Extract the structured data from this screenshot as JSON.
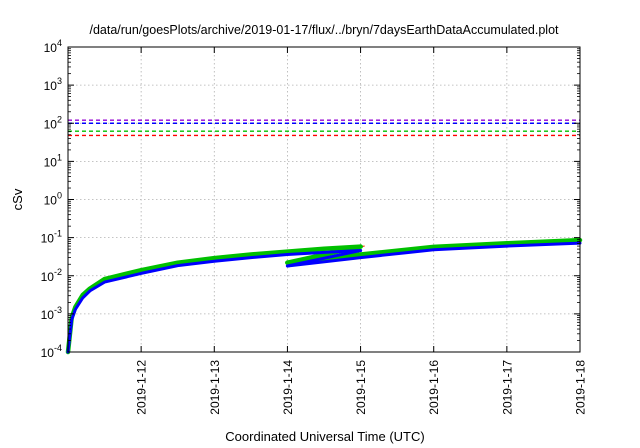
{
  "chart_data": {
    "type": "line",
    "title": "/data/run/goesPlots/archive/2019-01-17/flux/../bryn/7daysEarthDataAccumulated.plot",
    "xlabel": "Coordinated Universal Time (UTC)",
    "ylabel": "cSv",
    "yscale": "log",
    "ylim": [
      0.0001,
      10000
    ],
    "xlim": [
      "2019-01-11 00:00",
      "2019-01-18 00:00"
    ],
    "grid": true,
    "legend": "none",
    "ytick_labels": [
      {
        "base": "10",
        "exp": "-4"
      },
      {
        "base": "10",
        "exp": "-3"
      },
      {
        "base": "10",
        "exp": "-2"
      },
      {
        "base": "10",
        "exp": "-1"
      },
      {
        "base": "10",
        "exp": "0"
      },
      {
        "base": "10",
        "exp": "1"
      },
      {
        "base": "10",
        "exp": "2"
      },
      {
        "base": "10",
        "exp": "3"
      },
      {
        "base": "10",
        "exp": "4"
      }
    ],
    "xtick_labels": [
      "2019-1-12",
      "2019-1-13",
      "2019-1-14",
      "2019-1-15",
      "2019-1-16",
      "2019-1-17",
      "2019-1-18"
    ],
    "thresholds": [
      {
        "value": 120,
        "color": "#9400d3"
      },
      {
        "value": 100,
        "color": "#0000ff"
      },
      {
        "value": 62,
        "color": "#00c000"
      },
      {
        "value": 48,
        "color": "#ff0000"
      }
    ],
    "series": [
      {
        "color": "#ff3300",
        "segments": [
          {
            "x": [
              "2019-01-11 00:00",
              "2019-01-11 01:12",
              "2019-01-11 02:24",
              "2019-01-11 04:48",
              "2019-01-11 07:12",
              "2019-01-11 12:00",
              "2019-01-12 00:00",
              "2019-01-12 12:00",
              "2019-01-13 00:00",
              "2019-01-13 12:00",
              "2019-01-14 00:00",
              "2019-01-14 12:00",
              "2019-01-15 00:00",
              "2019-01-15 01:12"
            ],
            "y": [
              0.0001,
              0.0008,
              0.0015,
              0.003,
              0.0045,
              0.008,
              0.0135,
              0.0215,
              0.028,
              0.035,
              0.042,
              0.05,
              0.057,
              0.06
            ]
          }
        ]
      },
      {
        "color": "#00c000",
        "segments": [
          {
            "x": [
              "2019-01-11 00:00",
              "2019-01-11 01:12",
              "2019-01-11 02:24",
              "2019-01-11 04:48",
              "2019-01-11 07:12",
              "2019-01-11 12:00",
              "2019-01-12 00:00",
              "2019-01-12 12:00",
              "2019-01-13 00:00",
              "2019-01-13 12:00",
              "2019-01-14 00:00",
              "2019-01-14 12:00",
              "2019-01-15 00:00"
            ],
            "y": [
              0.0001,
              0.0008,
              0.0015,
              0.0031,
              0.0046,
              0.0082,
              0.014,
              0.022,
              0.029,
              0.036,
              0.043,
              0.051,
              0.058
            ]
          },
          {
            "x": [
              "2019-01-14 00:00",
              "2019-01-15 00:00"
            ],
            "y": [
              0.022,
              0.058
            ]
          },
          {
            "x": [
              "2019-01-14 00:00",
              "2019-01-15 00:00",
              "2019-01-16 00:00",
              "2019-01-17 00:00",
              "2019-01-18 00:00"
            ],
            "y": [
              0.022,
              0.036,
              0.057,
              0.071,
              0.086
            ]
          }
        ]
      },
      {
        "color": "#0000ff",
        "segments": [
          {
            "x": [
              "2019-01-11 00:00",
              "2019-01-11 01:12",
              "2019-01-11 02:24",
              "2019-01-11 04:48",
              "2019-01-11 07:12",
              "2019-01-11 12:00",
              "2019-01-12 00:00",
              "2019-01-12 12:00",
              "2019-01-13 00:00",
              "2019-01-13 12:00",
              "2019-01-14 00:00",
              "2019-01-14 12:00",
              "2019-01-15 00:00"
            ],
            "y": [
              0.0001,
              0.0007,
              0.0013,
              0.0026,
              0.004,
              0.0068,
              0.0115,
              0.0185,
              0.024,
              0.03,
              0.036,
              0.041,
              0.046
            ]
          },
          {
            "x": [
              "2019-01-14 00:00",
              "2019-01-15 00:00"
            ],
            "y": [
              0.018,
              0.046
            ]
          },
          {
            "x": [
              "2019-01-14 00:00",
              "2019-01-15 00:00",
              "2019-01-16 00:00",
              "2019-01-17 00:00",
              "2019-01-18 00:00"
            ],
            "y": [
              0.018,
              0.03,
              0.048,
              0.06,
              0.072
            ]
          }
        ]
      }
    ]
  }
}
